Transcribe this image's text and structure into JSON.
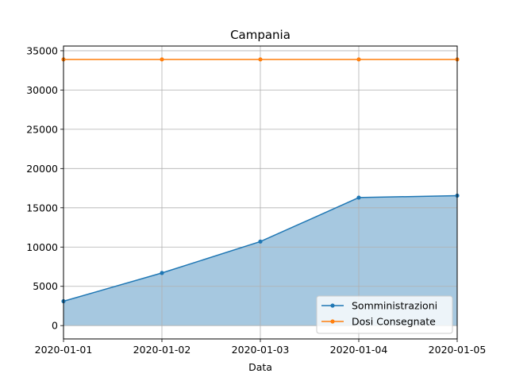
{
  "chart_data": {
    "type": "line",
    "title": "Campania",
    "xlabel": "Data",
    "ylabel": "",
    "categories": [
      "2020-01-01",
      "2020-01-02",
      "2020-01-03",
      "2020-01-04",
      "2020-01-05"
    ],
    "yticks": [
      0,
      5000,
      10000,
      15000,
      20000,
      25000,
      30000,
      35000
    ],
    "ylim": [
      -1700,
      35600
    ],
    "grid": true,
    "legend_position": "lower-right",
    "series": [
      {
        "name": "Somministrazioni",
        "values": [
          3100,
          6700,
          10700,
          16300,
          16550
        ],
        "color": "#1f77b4",
        "fill_color": "#a6c8e0",
        "filled": true
      },
      {
        "name": "Dosi Consegnate",
        "values": [
          33900,
          33900,
          33900,
          33900,
          33900
        ],
        "color": "#ff7f0e",
        "filled": false
      }
    ]
  }
}
